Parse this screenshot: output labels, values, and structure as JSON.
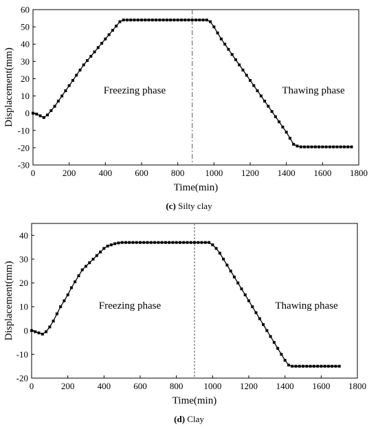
{
  "chart_data": [
    {
      "type": "line",
      "caption_letter": "(c)",
      "caption_text": "Silty clay",
      "xlabel": "Time(min)",
      "ylabel": "Displacement(mm)",
      "xlim": [
        0,
        1800
      ],
      "ylim": [
        -30,
        60
      ],
      "xticks": [
        0,
        200,
        400,
        600,
        800,
        1000,
        1200,
        1400,
        1600,
        1800
      ],
      "yticks": [
        -30,
        -20,
        -10,
        0,
        10,
        20,
        30,
        40,
        50,
        60
      ],
      "phase_divider_x": 880,
      "annotations": [
        "Freezing phase",
        "Thawing phase"
      ],
      "grid": false,
      "legend": "none",
      "marker": "square",
      "color": "#000000",
      "series": [
        {
          "x": [
            0,
            20,
            40,
            60,
            80,
            100,
            120,
            140,
            160,
            180,
            200,
            220,
            240,
            260,
            280,
            300,
            320,
            340,
            360,
            380,
            400,
            420,
            440,
            460,
            480,
            500,
            520,
            540,
            560,
            580,
            600,
            620,
            640,
            660,
            680,
            700,
            720,
            740,
            760,
            780,
            800,
            820,
            840,
            860,
            880,
            900,
            920,
            940,
            960,
            980,
            1000,
            1020,
            1040,
            1060,
            1080,
            1100,
            1120,
            1140,
            1160,
            1180,
            1200,
            1220,
            1240,
            1260,
            1280,
            1300,
            1320,
            1340,
            1360,
            1380,
            1400,
            1420,
            1440,
            1460,
            1480,
            1500,
            1520,
            1540,
            1560,
            1580,
            1600,
            1620,
            1640,
            1660,
            1680,
            1700,
            1720,
            1740,
            1760
          ],
          "y": [
            0,
            -0.5,
            -1.5,
            -2.5,
            -1,
            1.5,
            4,
            7,
            10,
            13,
            16,
            19,
            22,
            25,
            28,
            30.5,
            33,
            35.5,
            38,
            40.5,
            43,
            45.5,
            48,
            50.5,
            53,
            54,
            54,
            54,
            54,
            54,
            54,
            54,
            54,
            54,
            54,
            54,
            54,
            54,
            54,
            54,
            54,
            54,
            54,
            54,
            54,
            54,
            54,
            54,
            54,
            53,
            50,
            46.5,
            43,
            40,
            37,
            34,
            31,
            28,
            25,
            22,
            19,
            16,
            13,
            10,
            7,
            4,
            1,
            -2,
            -5,
            -8,
            -11,
            -14.5,
            -18,
            -19,
            -19.5,
            -19.5,
            -19.5,
            -19.5,
            -19.5,
            -19.5,
            -19.5,
            -19.5,
            -19.5,
            -19.5,
            -19.5,
            -19.5,
            -19.5,
            -19.5,
            -19.5
          ]
        }
      ]
    },
    {
      "type": "line",
      "caption_letter": "(d)",
      "caption_text": "Clay",
      "xlabel": "Time(min)",
      "ylabel": "Displacement(mm)",
      "xlim": [
        0,
        1800
      ],
      "ylim": [
        -20,
        45
      ],
      "xticks": [
        0,
        200,
        400,
        600,
        800,
        1000,
        1200,
        1400,
        1600,
        1800
      ],
      "yticks": [
        -20,
        -10,
        0,
        10,
        20,
        30,
        40
      ],
      "phase_divider_x": 900,
      "annotations": [
        "Freezing phase",
        "Thawing phase"
      ],
      "grid": false,
      "legend": "none",
      "marker": "square",
      "color": "#000000",
      "series": [
        {
          "x": [
            0,
            20,
            40,
            60,
            80,
            100,
            120,
            140,
            160,
            180,
            200,
            220,
            240,
            260,
            280,
            300,
            320,
            340,
            360,
            380,
            400,
            420,
            440,
            460,
            480,
            500,
            520,
            540,
            560,
            580,
            600,
            620,
            640,
            660,
            680,
            700,
            720,
            740,
            760,
            780,
            800,
            820,
            840,
            860,
            880,
            900,
            920,
            940,
            960,
            980,
            1000,
            1020,
            1040,
            1060,
            1080,
            1100,
            1120,
            1140,
            1160,
            1180,
            1200,
            1220,
            1240,
            1260,
            1280,
            1300,
            1320,
            1340,
            1360,
            1380,
            1400,
            1420,
            1440,
            1460,
            1480,
            1500,
            1520,
            1540,
            1560,
            1580,
            1600,
            1620,
            1640,
            1660,
            1680,
            1700
          ],
          "y": [
            0,
            -0.5,
            -1,
            -1.5,
            -0.5,
            1.5,
            4,
            7,
            10,
            12.5,
            15,
            18,
            20.5,
            23,
            25.5,
            27,
            28.5,
            30,
            31.5,
            33,
            34.5,
            35.5,
            36,
            36.5,
            36.8,
            37,
            37,
            37,
            37,
            37,
            37,
            37,
            37,
            37,
            37,
            37,
            37,
            37,
            37,
            37,
            37,
            37,
            37,
            37,
            37,
            37,
            37,
            37,
            37,
            37,
            36,
            34.5,
            32.5,
            30,
            27.5,
            25,
            22.5,
            20,
            17.5,
            15,
            12.5,
            10,
            7.5,
            5,
            2.5,
            0,
            -2.5,
            -5,
            -7.5,
            -10,
            -12.5,
            -14.5,
            -15,
            -15,
            -15,
            -15,
            -15,
            -15,
            -15,
            -15,
            -15,
            -15,
            -15,
            -15,
            -15,
            -15
          ]
        }
      ]
    }
  ]
}
